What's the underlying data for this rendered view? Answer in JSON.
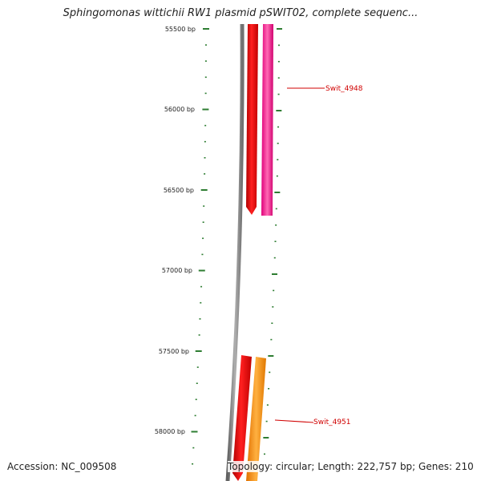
{
  "header": {
    "title": "Sphingomonas wittichii RW1 plasmid pSWIT02, complete sequenc..."
  },
  "footer": {
    "accession": "Accession: NC_009508",
    "info": "Topology: circular; Length: 222,757 bp; Genes: 210"
  },
  "ruler": {
    "tick_labels": [
      "55500 bp",
      "56000 bp",
      "56500 bp",
      "57000 bp",
      "57500 bp",
      "58000 bp"
    ],
    "tick_color": "#2e7d32"
  },
  "genes": [
    {
      "name": "Swit_4948",
      "color": "#ff1493",
      "track": "outer"
    },
    {
      "name": "Swit_4951",
      "color": "#ff8c00",
      "track": "outer"
    }
  ],
  "colors": {
    "backbone": "#808080",
    "red_gene": "#ff0000",
    "label": "#d00000"
  }
}
